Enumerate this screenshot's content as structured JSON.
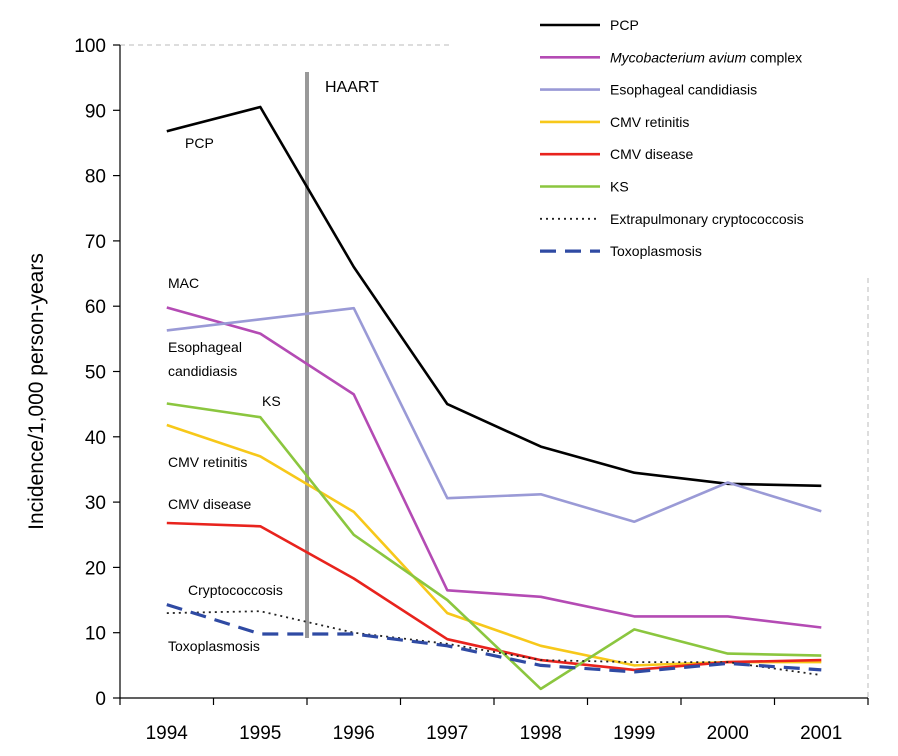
{
  "chart_data": {
    "type": "line",
    "ylabel": "Incidence/1,000 person-years",
    "xlabel": "",
    "x": [
      "1994",
      "1995",
      "1996",
      "1997",
      "1998",
      "1999",
      "2000",
      "2001"
    ],
    "ylim": [
      0,
      100
    ],
    "yticks": [
      0,
      10,
      20,
      30,
      40,
      50,
      60,
      70,
      80,
      90,
      100
    ],
    "legend_position": "top-right",
    "series": [
      {
        "name": "PCP",
        "color": "#000000",
        "dash": "solid",
        "values": [
          86.8,
          90.5,
          66,
          45,
          38.5,
          34.5,
          32.8,
          32.5
        ]
      },
      {
        "name_italic": "Mycobacterium avium",
        "name_rest": " complex",
        "color": "#b44bb4",
        "dash": "solid",
        "values": [
          59.8,
          55.8,
          46.5,
          16.5,
          15.5,
          12.5,
          12.5,
          10.8
        ]
      },
      {
        "name": "Esophageal candidiasis",
        "color": "#9a9ad6",
        "dash": "solid",
        "values": [
          56.3,
          58,
          59.7,
          30.6,
          31.2,
          27,
          33,
          28.6
        ]
      },
      {
        "name": "CMV retinitis",
        "color": "#f7c81a",
        "dash": "solid",
        "values": [
          41.8,
          37,
          28.5,
          13,
          8,
          5,
          5.5,
          5.5
        ]
      },
      {
        "name": "CMV disease",
        "color": "#e8231d",
        "dash": "solid",
        "values": [
          26.8,
          26.3,
          18.3,
          9,
          5.8,
          4.3,
          5.5,
          5.8
        ]
      },
      {
        "name": "KS",
        "color": "#8bc63f",
        "dash": "solid",
        "values": [
          45.1,
          43,
          25,
          15,
          1.4,
          10.5,
          6.8,
          6.5
        ]
      },
      {
        "name": "Extrapulmonary cryptococcosis",
        "color": "#222222",
        "dash": "dotted",
        "values": [
          13,
          13.3,
          10,
          8.3,
          5.8,
          5.5,
          5.5,
          3.5
        ]
      },
      {
        "name": "Toxoplasmosis",
        "color": "#2f4aa3",
        "dash": "dashed",
        "values": [
          14.3,
          9.8,
          9.8,
          8,
          5,
          4,
          5.3,
          4.3
        ]
      }
    ],
    "annotations": {
      "haart": {
        "text": "HAART",
        "x": 1995.5
      },
      "labels": [
        {
          "text": "PCP",
          "near": "PCP"
        },
        {
          "text": "MAC",
          "near": "Mycobacterium avium complex"
        },
        {
          "text": "Esophageal",
          "near": "Esophageal candidiasis"
        },
        {
          "text": "candidiasis",
          "near": "Esophageal candidiasis"
        },
        {
          "text": "KS",
          "near": "KS"
        },
        {
          "text": "CMV retinitis",
          "near": "CMV retinitis"
        },
        {
          "text": "CMV disease",
          "near": "CMV disease"
        },
        {
          "text": "Cryptococcosis",
          "near": "Extrapulmonary cryptococcosis"
        },
        {
          "text": "Toxoplasmosis",
          "near": "Toxoplasmosis"
        }
      ]
    }
  }
}
